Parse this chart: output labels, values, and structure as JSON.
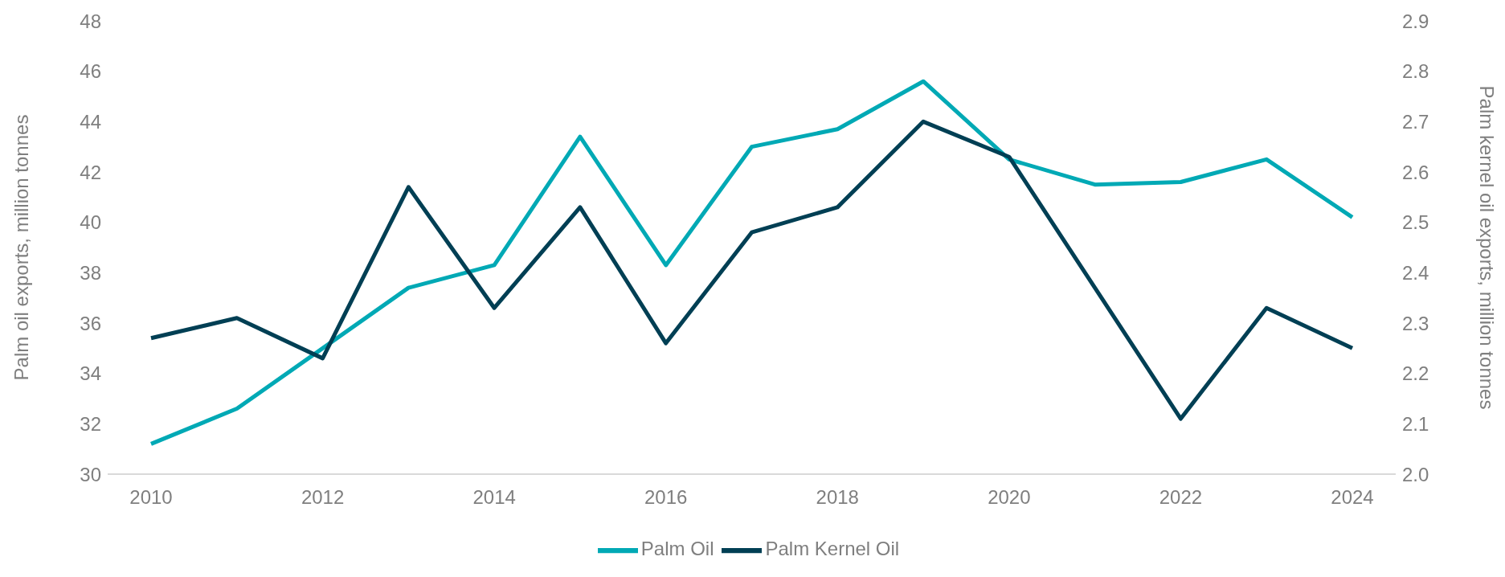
{
  "chart_data": {
    "type": "line",
    "categories": [
      "2010",
      null,
      "2012",
      null,
      "2014",
      null,
      "2016",
      null,
      "2018",
      null,
      "2020",
      null,
      "2022",
      null,
      "2024"
    ],
    "series": [
      {
        "name": "Palm Oil",
        "color": "#00a9b5",
        "values": [
          31.2,
          32.6,
          35.0,
          37.4,
          38.3,
          43.4,
          38.3,
          43.0,
          43.7,
          45.6,
          42.5,
          41.5,
          41.6,
          42.5,
          40.2
        ]
      },
      {
        "name": "Palm Kernel Oil",
        "color": "#003f54",
        "axis": "y2",
        "values": [
          2.27,
          2.31,
          2.23,
          2.57,
          2.33,
          2.53,
          2.26,
          2.48,
          2.53,
          2.7,
          2.63,
          2.37,
          2.11,
          2.33,
          2.25
        ]
      }
    ],
    "ylabel": "Palm oil exports, million tonnes",
    "y2label": "Palm kernel oil exports, million tonnes",
    "ylim": [
      30,
      48
    ],
    "yticks": [
      30,
      32,
      34,
      36,
      38,
      40,
      42,
      44,
      46,
      48
    ],
    "y2lim": [
      2.0,
      2.9
    ],
    "y2ticks": [
      {
        "value": 2.0,
        "label": "2.0"
      },
      2.1,
      2.2,
      2.3,
      2.4,
      2.5,
      2.6,
      2.7,
      2.8,
      2.9
    ],
    "grid": false,
    "legend": "bottom",
    "marker": "none",
    "line_style": "solid"
  }
}
